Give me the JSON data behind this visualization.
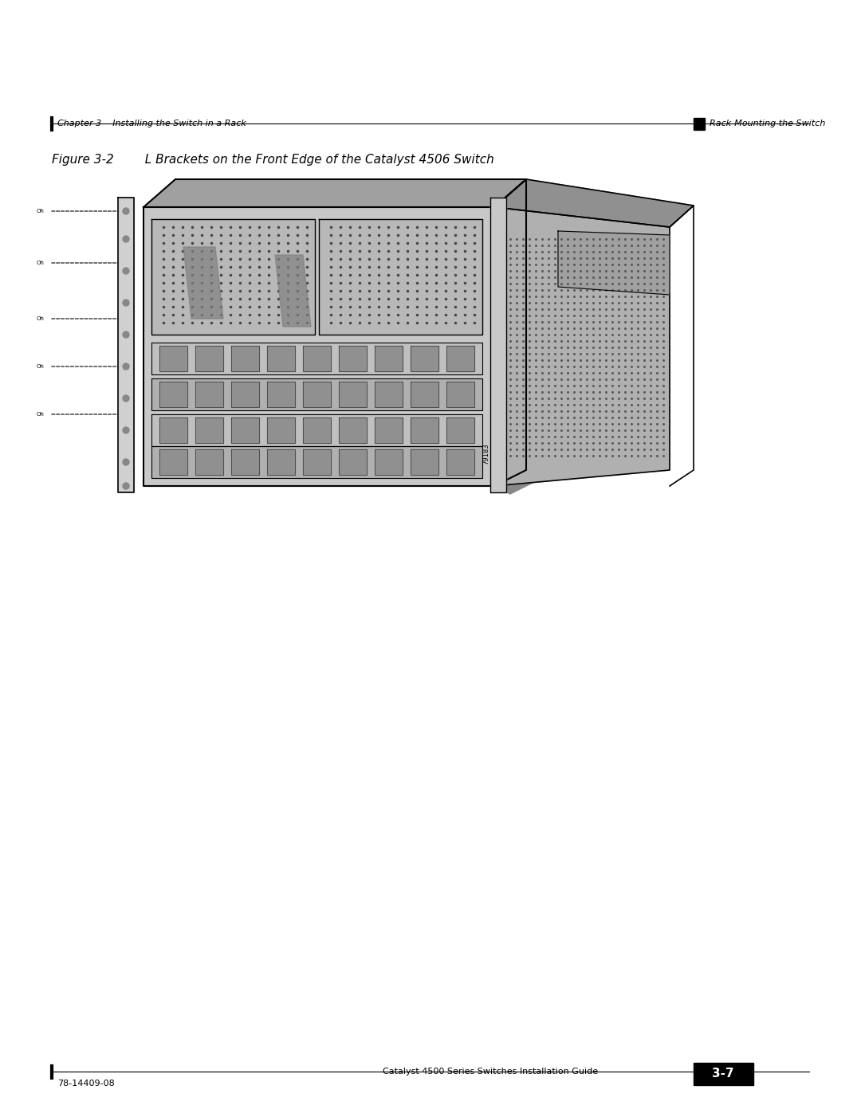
{
  "page_width": 10.8,
  "page_height": 13.97,
  "bg_color": "#ffffff",
  "top_left_text": "Chapter 3    Installing the Switch in a Rack",
  "top_right_text": "Rack-Mounting the Switch",
  "figure_label": "Figure 3-2",
  "figure_title": "L Brackets on the Front Edge of the Catalyst 4506 Switch",
  "bottom_left_text": "78-14409-08",
  "bottom_right_text": "Catalyst 4500 Series Switches Installation Guide",
  "bottom_page": "3-7",
  "top_bar_color": "#000000",
  "bottom_bar_color": "#000000",
  "left_bar_color": "#000000"
}
